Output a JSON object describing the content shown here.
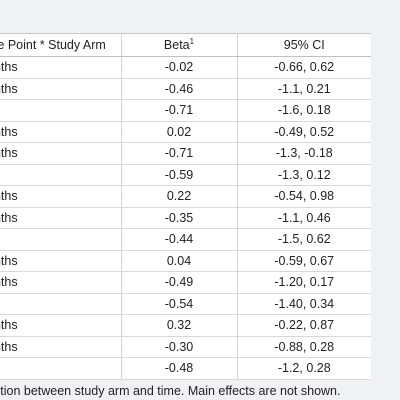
{
  "table": {
    "headers": {
      "col1": "me Point * Study Arm",
      "col2": "Beta",
      "col2_sup": "1",
      "col3": "95% CI"
    },
    "rows": [
      {
        "label": "onths",
        "beta": "-0.02",
        "ci": "-0.66, 0.62"
      },
      {
        "label": "onths",
        "beta": "-0.46",
        "ci": "-1.1, 0.21"
      },
      {
        "label": "ar",
        "beta": "-0.71",
        "ci": "-1.6, 0.18"
      },
      {
        "label": "onths",
        "beta": "0.02",
        "ci": "-0.49, 0.52"
      },
      {
        "label": "onths",
        "beta": "-0.71",
        "ci": "-1.3, -0.18"
      },
      {
        "label": "ar",
        "beta": "-0.59",
        "ci": "-1.3, 0.12"
      },
      {
        "label": "onths",
        "beta": "0.22",
        "ci": "-0.54, 0.98"
      },
      {
        "label": "onths",
        "beta": "-0.35",
        "ci": "-1.1, 0.46"
      },
      {
        "label": "ar",
        "beta": "-0.44",
        "ci": "-1.5, 0.62"
      },
      {
        "label": "onths",
        "beta": "0.04",
        "ci": "-0.59, 0.67"
      },
      {
        "label": "onths",
        "beta": "-0.49",
        "ci": "-1.20, 0.17"
      },
      {
        "label": "ar",
        "beta": "-0.54",
        "ci": "-1.40, 0.34"
      },
      {
        "label": "onths",
        "beta": "0.32",
        "ci": "-0.22, 0.87"
      },
      {
        "label": "onths",
        "beta": "-0.30",
        "ci": "-0.88, 0.28"
      },
      {
        "label": "ar",
        "beta": "-0.48",
        "ci": "-1.2, 0.28"
      }
    ]
  },
  "footnote": "ction between study arm and time. Main effects are not shown."
}
